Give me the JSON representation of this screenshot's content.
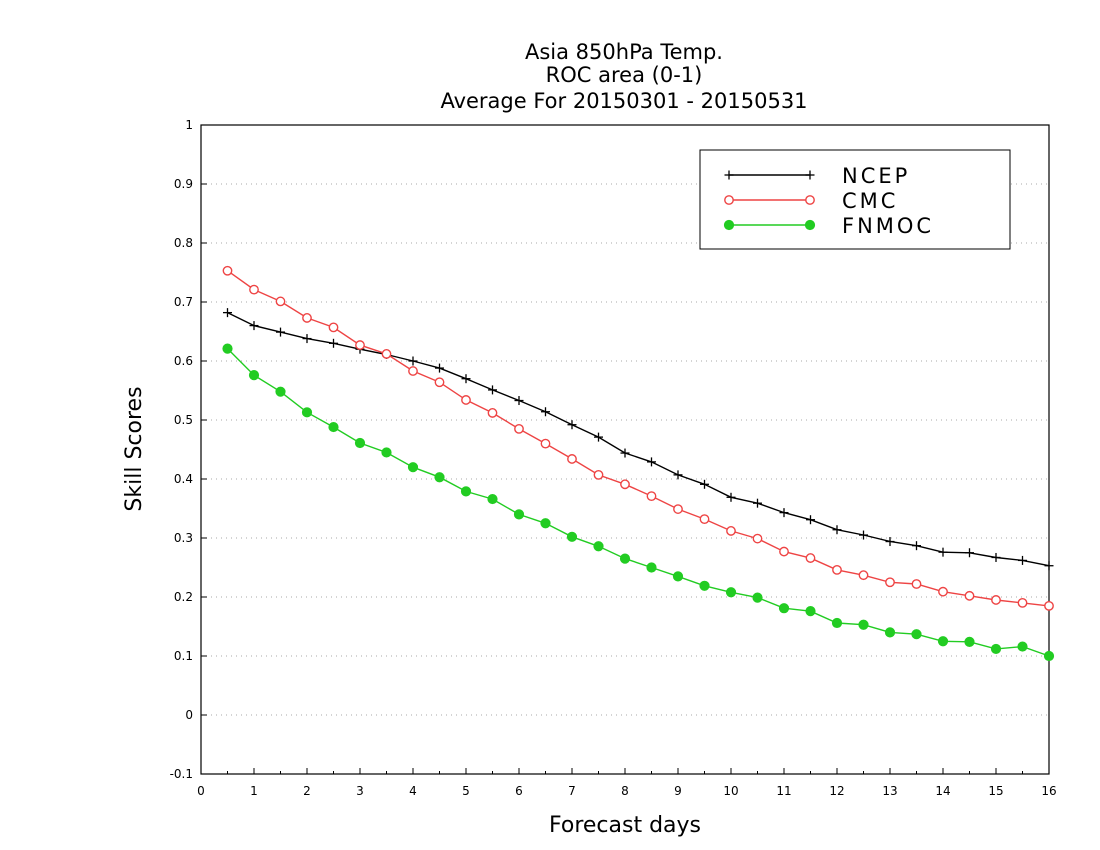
{
  "chart_data": {
    "type": "line",
    "title": [
      "Asia 850hPa Temp.",
      "ROC area (0-1)",
      "Average For 20150301 - 20150531"
    ],
    "xlabel": "Forecast days",
    "ylabel": "Skill Scores",
    "xlim": [
      0,
      16
    ],
    "ylim": [
      -0.1,
      1
    ],
    "xticks": [
      0,
      1,
      2,
      3,
      4,
      5,
      6,
      7,
      8,
      9,
      10,
      11,
      12,
      13,
      14,
      15,
      16
    ],
    "yticks": [
      -0.1,
      0,
      0.1,
      0.2,
      0.3,
      0.4,
      0.5,
      0.6,
      0.7,
      0.8,
      0.9,
      1
    ],
    "ytick_labels": [
      "-0.1",
      "0",
      "0.1",
      "0.2",
      "0.3",
      "0.4",
      "0.5",
      "0.6",
      "0.7",
      "0.8",
      "0.9",
      "1"
    ],
    "grid": "horizontal dotted",
    "legend_position": "top-right",
    "x": [
      0.5,
      1,
      1.5,
      2,
      2.5,
      3,
      3.5,
      4,
      4.5,
      5,
      5.5,
      6,
      6.5,
      7,
      7.5,
      8,
      8.5,
      9,
      9.5,
      10,
      10.5,
      11,
      11.5,
      12,
      12.5,
      13,
      13.5,
      14,
      14.5,
      15,
      15.5,
      16
    ],
    "series": [
      {
        "name": "NCEP",
        "color": "#000000",
        "marker": "plus",
        "values": [
          0.682,
          0.66,
          0.649,
          0.638,
          0.63,
          0.62,
          0.611,
          0.6,
          0.588,
          0.57,
          0.551,
          0.533,
          0.514,
          0.492,
          0.471,
          0.444,
          0.429,
          0.407,
          0.391,
          0.369,
          0.359,
          0.343,
          0.331,
          0.314,
          0.305,
          0.294,
          0.287,
          0.276,
          0.275,
          0.267,
          0.262,
          0.253
        ]
      },
      {
        "name": "CMC",
        "color": "#ee4444",
        "marker": "open-circle",
        "values": [
          0.753,
          0.721,
          0.701,
          0.673,
          0.657,
          0.627,
          0.612,
          0.583,
          0.564,
          0.534,
          0.512,
          0.485,
          0.46,
          0.434,
          0.407,
          0.391,
          0.371,
          0.349,
          0.332,
          0.312,
          0.299,
          0.277,
          0.266,
          0.246,
          0.237,
          0.225,
          0.222,
          0.209,
          0.202,
          0.195,
          0.19,
          0.185
        ]
      },
      {
        "name": "FNMOC",
        "color": "#22cc22",
        "marker": "filled-circle",
        "values": [
          0.621,
          0.576,
          0.548,
          0.513,
          0.488,
          0.461,
          0.445,
          0.42,
          0.403,
          0.379,
          0.366,
          0.34,
          0.325,
          0.302,
          0.286,
          0.265,
          0.25,
          0.235,
          0.219,
          0.208,
          0.199,
          0.181,
          0.176,
          0.156,
          0.153,
          0.14,
          0.137,
          0.125,
          0.124,
          0.112,
          0.116,
          0.1
        ]
      }
    ]
  }
}
